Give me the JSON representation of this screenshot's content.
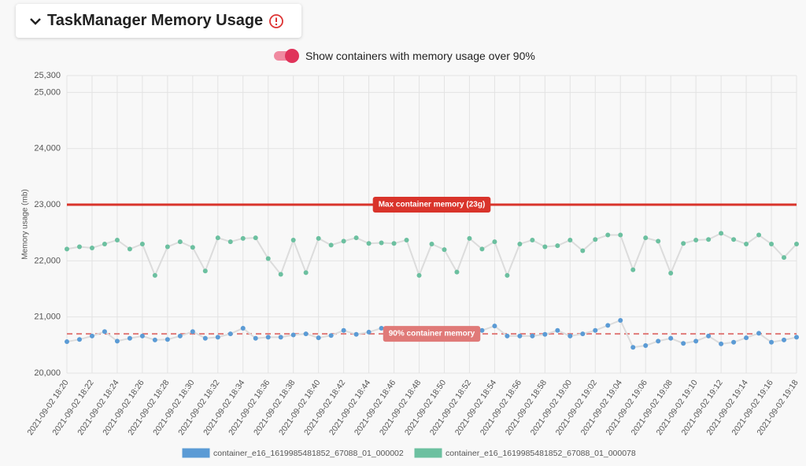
{
  "header": {
    "title": "TaskManager Memory Usage",
    "toggle_label": "Show containers with memory usage over 90%"
  },
  "chart_data": {
    "type": "line",
    "y_label": "Memory usage (mb)",
    "categories": [
      "2021-09-02 18:20",
      null,
      "2021-09-02 18:22",
      null,
      "2021-09-02 18:24",
      null,
      "2021-09-02 18:26",
      null,
      "2021-09-02 18:28",
      null,
      "2021-09-02 18:30",
      null,
      "2021-09-02 18:32",
      null,
      "2021-09-02 18:34",
      null,
      "2021-09-02 18:36",
      null,
      "2021-09-02 18:38",
      null,
      "2021-09-02 18:40",
      null,
      "2021-09-02 18:42",
      null,
      "2021-09-02 18:44",
      null,
      "2021-09-02 18:46",
      null,
      "2021-09-02 18:48",
      null,
      "2021-09-02 18:50",
      null,
      "2021-09-02 18:52",
      null,
      "2021-09-02 18:54",
      null,
      "2021-09-02 18:56",
      null,
      "2021-09-02 18:58",
      null,
      "2021-09-02 19:00",
      null,
      "2021-09-02 19:02",
      null,
      "2021-09-02 19:04",
      null,
      "2021-09-02 19:06",
      null,
      "2021-09-02 19:08",
      null,
      "2021-09-02 19:10",
      null,
      "2021-09-02 19:12",
      null,
      "2021-09-02 19:14",
      null,
      "2021-09-02 19:16",
      null,
      "2021-09-02 19:18"
    ],
    "series": [
      {
        "name": "container_e16_1619985481852_67088_01_000002",
        "color": "#5b9bd5",
        "values": [
          20560,
          20600,
          20660,
          20740,
          20570,
          20620,
          20660,
          20590,
          20600,
          20660,
          20740,
          20620,
          20640,
          20700,
          20800,
          20620,
          20640,
          20640,
          20680,
          20700,
          20630,
          20670,
          20760,
          20690,
          20730,
          20800,
          20730,
          20760,
          20710,
          20760,
          20760,
          20780,
          20780,
          20760,
          20840,
          20660,
          20660,
          20660,
          20690,
          20760,
          20660,
          20700,
          20760,
          20850,
          20940,
          20460,
          20490,
          20570,
          20620,
          20530,
          20570,
          20660,
          20520,
          20550,
          20630,
          20710,
          20550,
          20590,
          20640
        ]
      },
      {
        "name": "container_e16_1619985481852_67088_01_000078",
        "color": "#6cc0a0",
        "values": [
          22210,
          22250,
          22230,
          22300,
          22370,
          22210,
          22300,
          21740,
          22250,
          22340,
          22240,
          21820,
          22410,
          22340,
          22400,
          22410,
          22040,
          21760,
          22370,
          21790,
          22400,
          22280,
          22350,
          22410,
          22310,
          22320,
          22310,
          22370,
          21740,
          22300,
          22200,
          21800,
          22400,
          22210,
          22340,
          21740,
          22300,
          22370,
          22250,
          22270,
          22370,
          22180,
          22380,
          22460,
          22460,
          21840,
          22410,
          22350,
          21780,
          22310,
          22370,
          22380,
          22490,
          22380,
          22300,
          22460,
          22300,
          22060,
          22300
        ]
      }
    ],
    "ylim": [
      20000,
      25300
    ],
    "yticks": [
      {
        "value": 20000,
        "label": "20,000"
      },
      {
        "value": 21000,
        "label": "21,000"
      },
      {
        "value": 22000,
        "label": "22,000"
      },
      {
        "value": 23000,
        "label": "23,000"
      },
      {
        "value": 24000,
        "label": "24,000"
      },
      {
        "value": 25000,
        "label": "25,000"
      },
      {
        "value": 25300,
        "label": "25,300"
      }
    ],
    "annotations": [
      {
        "label": "Max container memory (23g)",
        "value": 23000,
        "color": "#d9342b",
        "style": "solid"
      },
      {
        "label": "90% container memory",
        "value": 20700,
        "color": "#e07a78",
        "style": "dashed"
      }
    ],
    "grid": true,
    "legend": "bottom"
  }
}
